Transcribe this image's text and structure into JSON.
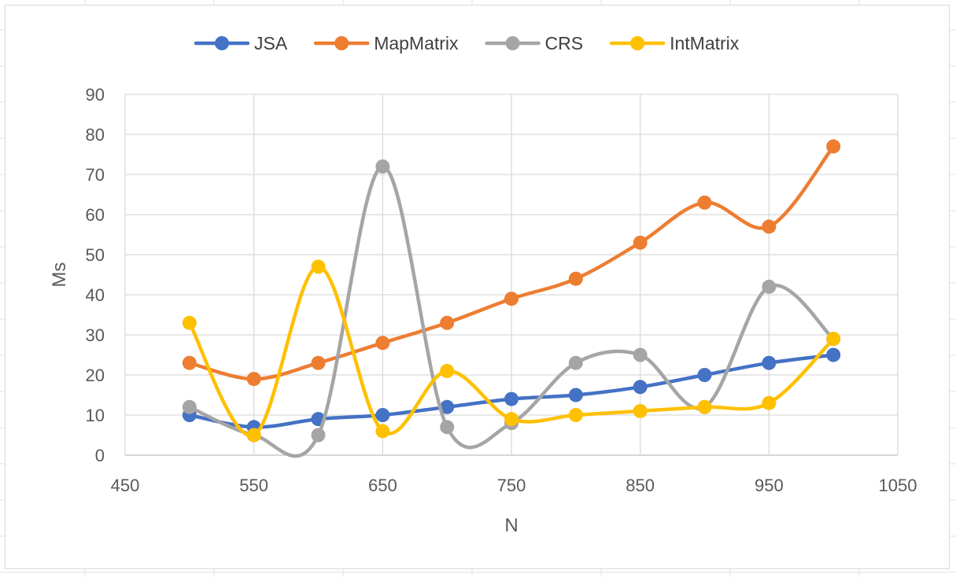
{
  "chart_data": {
    "type": "scatter",
    "smooth": true,
    "xlabel": "N",
    "ylabel": "Ms",
    "xlim": [
      450,
      1050
    ],
    "ylim": [
      0,
      90
    ],
    "xticks": [
      450,
      550,
      650,
      750,
      850,
      950,
      1050
    ],
    "yticks": [
      0,
      10,
      20,
      30,
      40,
      50,
      60,
      70,
      80,
      90
    ],
    "grid": true,
    "legend_position": "top",
    "x": [
      500,
      550,
      600,
      650,
      700,
      750,
      800,
      850,
      900,
      950,
      1000
    ],
    "series": [
      {
        "name": "JSA",
        "color": "#4472C4",
        "values": [
          10,
          7,
          9,
          10,
          12,
          14,
          15,
          17,
          20,
          23,
          25
        ]
      },
      {
        "name": "MapMatrix",
        "color": "#ED7D31",
        "values": [
          23,
          19,
          23,
          28,
          33,
          39,
          44,
          53,
          63,
          57,
          77
        ]
      },
      {
        "name": "CRS",
        "color": "#A5A5A5",
        "values": [
          12,
          5,
          5,
          72,
          7,
          8,
          23,
          25,
          12,
          42,
          29
        ]
      },
      {
        "name": "IntMatrix",
        "color": "#FFC000",
        "values": [
          33,
          5,
          47,
          6,
          21,
          9,
          10,
          11,
          12,
          13,
          29
        ]
      }
    ]
  }
}
